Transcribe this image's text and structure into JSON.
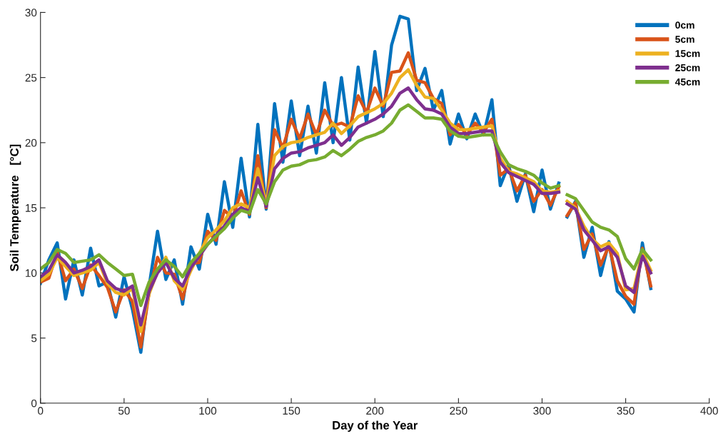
{
  "chart_data": {
    "type": "line",
    "xlabel": "Day of the Year",
    "ylabel": "Soil Temperature   [°C]",
    "x": [
      0,
      5,
      10,
      15,
      20,
      25,
      30,
      35,
      40,
      45,
      50,
      55,
      60,
      65,
      70,
      75,
      80,
      85,
      90,
      95,
      100,
      105,
      110,
      115,
      120,
      125,
      130,
      135,
      140,
      145,
      150,
      155,
      160,
      165,
      170,
      175,
      180,
      185,
      190,
      195,
      200,
      205,
      210,
      215,
      220,
      225,
      230,
      235,
      240,
      245,
      250,
      255,
      260,
      265,
      270,
      275,
      280,
      285,
      290,
      295,
      300,
      305,
      310,
      312,
      315,
      320,
      325,
      330,
      335,
      340,
      345,
      350,
      355,
      360,
      365
    ],
    "series": [
      {
        "name": "0cm",
        "color": "#0072bd",
        "values": [
          9.2,
          11.0,
          12.3,
          8.0,
          11.0,
          8.3,
          11.9,
          9.0,
          9.3,
          6.6,
          9.7,
          7.2,
          3.9,
          9.0,
          13.2,
          9.5,
          11.0,
          7.6,
          12.0,
          10.3,
          14.5,
          12.2,
          17.0,
          13.5,
          18.8,
          14.3,
          21.4,
          14.9,
          23.0,
          18.5,
          23.2,
          19.0,
          22.8,
          19.2,
          24.6,
          20.0,
          25.0,
          20.2,
          25.8,
          21.5,
          27.0,
          22.0,
          27.5,
          29.7,
          29.5,
          24.0,
          25.7,
          22.5,
          24.0,
          19.9,
          22.2,
          20.3,
          22.2,
          20.6,
          23.3,
          16.7,
          18.3,
          15.5,
          17.6,
          14.7,
          17.9,
          14.9,
          16.9,
          null,
          14.3,
          15.5,
          11.2,
          13.5,
          9.8,
          12.4,
          8.6,
          8.0,
          7.0,
          12.3,
          8.8
        ]
      },
      {
        "name": "5cm",
        "color": "#d95319",
        "values": [
          9.3,
          9.6,
          11.6,
          9.4,
          10.3,
          8.8,
          10.6,
          9.8,
          8.9,
          7.0,
          8.7,
          7.8,
          4.3,
          8.5,
          11.2,
          10.0,
          9.9,
          8.0,
          10.7,
          10.8,
          13.2,
          12.5,
          14.8,
          14.2,
          16.3,
          14.5,
          19.0,
          15.0,
          21.0,
          19.6,
          21.8,
          20.3,
          22.2,
          20.6,
          22.5,
          21.3,
          21.5,
          21.2,
          23.6,
          22.3,
          24.2,
          22.8,
          25.4,
          25.5,
          26.9,
          24.8,
          24.6,
          23.4,
          23.0,
          20.6,
          21.4,
          20.6,
          21.5,
          20.8,
          21.8,
          17.5,
          18.0,
          16.3,
          17.5,
          15.5,
          16.4,
          15.2,
          16.6,
          null,
          14.4,
          15.4,
          11.8,
          13.0,
          10.6,
          12.1,
          9.4,
          8.2,
          7.6,
          11.9,
          9.0
        ]
      },
      {
        "name": "15cm",
        "color": "#edb120",
        "values": [
          9.4,
          9.9,
          11.2,
          10.5,
          9.8,
          10.0,
          10.2,
          10.8,
          9.2,
          8.5,
          8.3,
          8.8,
          5.5,
          8.4,
          10.1,
          11.2,
          9.4,
          8.7,
          10.2,
          11.5,
          12.7,
          13.3,
          14.0,
          15.0,
          15.3,
          15.0,
          18.0,
          15.3,
          19.0,
          19.7,
          20.0,
          20.1,
          20.4,
          20.6,
          20.8,
          21.5,
          20.7,
          21.3,
          22.0,
          22.3,
          22.6,
          23.0,
          23.8,
          25.0,
          25.6,
          24.4,
          23.5,
          23.4,
          22.5,
          21.5,
          21.0,
          21.0,
          21.1,
          21.2,
          21.3,
          18.8,
          17.8,
          17.6,
          17.3,
          17.0,
          16.3,
          16.2,
          16.3,
          null,
          15.5,
          15.0,
          13.6,
          12.6,
          12.0,
          12.3,
          11.5,
          8.7,
          8.8,
          11.6,
          10.2
        ]
      },
      {
        "name": "25cm",
        "color": "#7e2f8e",
        "values": [
          9.7,
          10.2,
          11.4,
          10.8,
          10.0,
          10.2,
          10.5,
          11.0,
          9.4,
          8.8,
          8.6,
          9.0,
          6.0,
          8.6,
          10.0,
          10.8,
          9.6,
          9.0,
          10.4,
          11.3,
          12.2,
          12.9,
          13.6,
          14.5,
          15.0,
          14.7,
          17.3,
          15.1,
          18.0,
          18.8,
          19.2,
          19.3,
          19.6,
          19.8,
          20.0,
          20.6,
          19.8,
          20.4,
          21.2,
          21.5,
          21.8,
          22.2,
          22.8,
          23.8,
          24.2,
          23.3,
          22.6,
          22.5,
          22.2,
          21.2,
          20.7,
          20.7,
          20.8,
          20.9,
          20.9,
          18.5,
          17.7,
          17.4,
          17.1,
          16.8,
          16.1,
          16.1,
          16.2,
          null,
          15.3,
          14.9,
          13.3,
          12.5,
          11.7,
          12.0,
          11.2,
          9.0,
          8.5,
          11.3,
          10.0
        ]
      },
      {
        "name": "45cm",
        "color": "#77ac30",
        "values": [
          10.3,
          10.8,
          11.8,
          11.5,
          10.8,
          10.9,
          11.0,
          11.4,
          10.8,
          10.3,
          9.8,
          9.9,
          7.5,
          9.3,
          10.3,
          11.0,
          10.5,
          9.7,
          10.8,
          11.5,
          12.2,
          12.8,
          13.4,
          14.2,
          14.8,
          14.6,
          16.4,
          15.3,
          17.0,
          17.9,
          18.2,
          18.3,
          18.6,
          18.7,
          18.9,
          19.4,
          19.0,
          19.5,
          20.1,
          20.4,
          20.6,
          20.9,
          21.5,
          22.5,
          22.9,
          22.4,
          21.9,
          21.9,
          21.8,
          20.9,
          20.5,
          20.4,
          20.5,
          20.6,
          20.6,
          19.3,
          18.3,
          18.0,
          17.8,
          17.5,
          16.9,
          16.5,
          16.7,
          null,
          16.0,
          15.7,
          14.8,
          13.9,
          13.5,
          13.3,
          12.8,
          11.1,
          10.3,
          11.8,
          11.0
        ]
      }
    ],
    "xlim": [
      0,
      400
    ],
    "xticks": [
      0,
      50,
      100,
      150,
      200,
      250,
      300,
      350,
      400
    ],
    "ylim": [
      0,
      30
    ],
    "yticks": [
      0,
      5,
      10,
      15,
      20,
      25,
      30
    ],
    "grid": false,
    "legend": "top right",
    "marker": "none",
    "line_style": "solid"
  }
}
